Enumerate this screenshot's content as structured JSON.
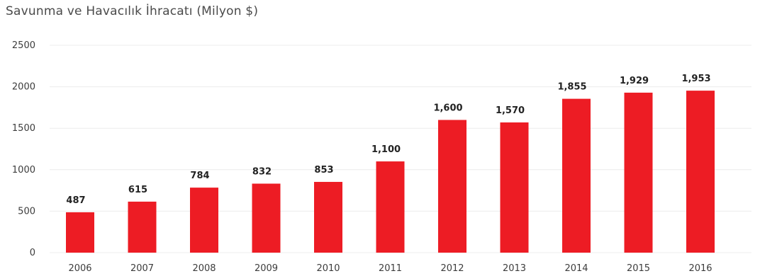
{
  "title": "Savunma ve Havacılık İhracatı (Milyon $)",
  "colors": {
    "bar": "#ed1c24",
    "grid": "#ececec",
    "axis_text": "#3c3c3c",
    "label_text": "#222222"
  },
  "chart_data": {
    "type": "bar",
    "title": "Savunma ve Havacılık İhracatı (Milyon $)",
    "xlabel": "",
    "ylabel": "",
    "categories": [
      "2006",
      "2007",
      "2008",
      "2009",
      "2010",
      "2011",
      "2012",
      "2013",
      "2014",
      "2015",
      "2016"
    ],
    "values": [
      487,
      615,
      784,
      832,
      853,
      1100,
      1600,
      1570,
      1855,
      1929,
      1953
    ],
    "value_labels": [
      "487",
      "615",
      "784",
      "832",
      "853",
      "1,100",
      "1,600",
      "1,570",
      "1,855",
      "1,929",
      "1,953"
    ],
    "y_ticks": [
      0,
      500,
      1000,
      1500,
      2000,
      2500
    ],
    "y_tick_labels": [
      "0",
      "500",
      "1000",
      "1500",
      "2000",
      "2500"
    ],
    "ylim": [
      0,
      2500
    ],
    "grid": true,
    "legend": "none"
  }
}
